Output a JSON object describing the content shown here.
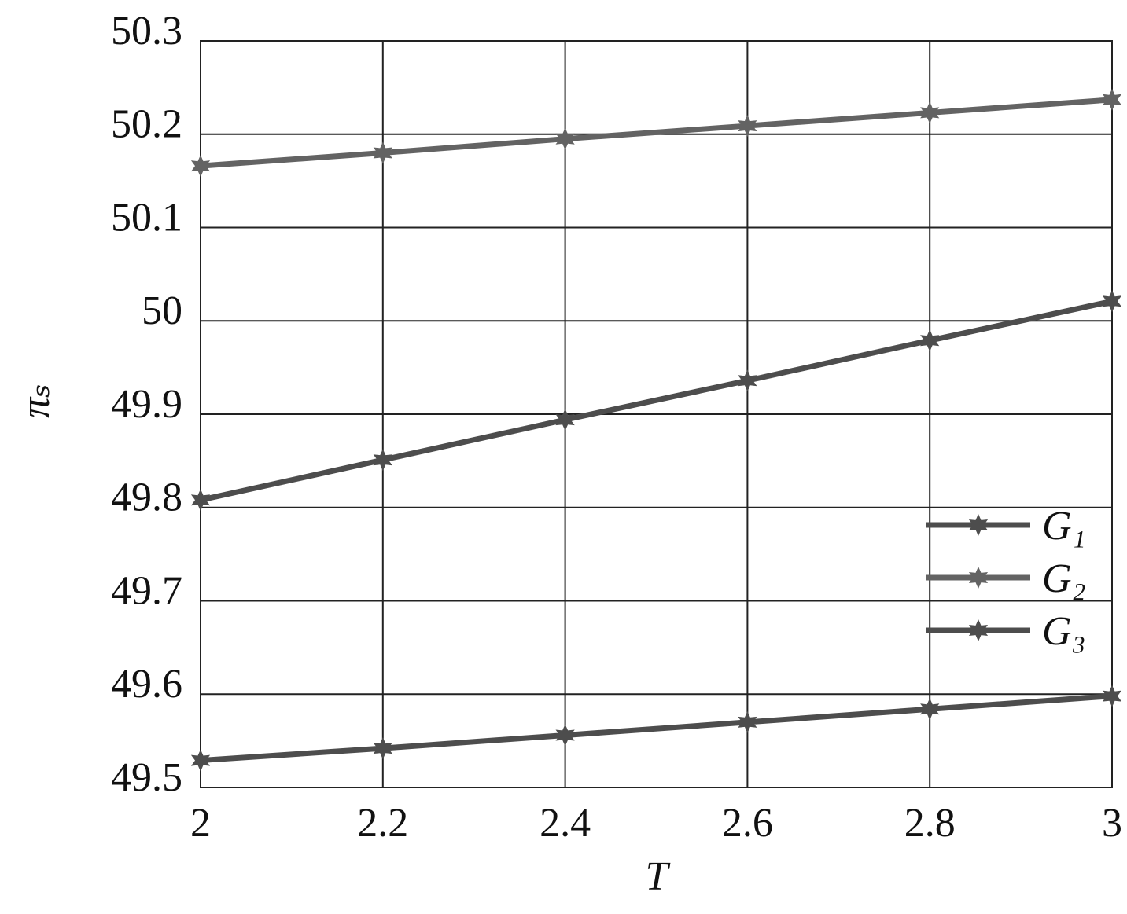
{
  "chart_data": {
    "type": "line",
    "x_label": "T",
    "y_label": "πₛ",
    "x": [
      2,
      2.2,
      2.4,
      2.6,
      2.8,
      3
    ],
    "series": [
      {
        "name": "G₁",
        "color": "#4d4d4d",
        "values": [
          49.529,
          49.542,
          49.556,
          49.57,
          49.584,
          49.598
        ]
      },
      {
        "name": "G₂",
        "color": "#636363",
        "values": [
          50.166,
          50.18,
          50.195,
          50.209,
          50.223,
          50.237
        ]
      },
      {
        "name": "G₃",
        "color": "#4d4d4d",
        "values": [
          49.808,
          49.851,
          49.894,
          49.936,
          49.979,
          50.021
        ]
      }
    ],
    "xlim": [
      2,
      3
    ],
    "xticks": [
      2,
      2.2,
      2.4,
      2.6,
      2.8,
      3
    ],
    "ylim": [
      49.5,
      50.3
    ],
    "yticks": [
      49.5,
      49.6,
      49.7,
      49.8,
      49.9,
      50,
      50.1,
      50.2,
      50.3
    ],
    "grid": true,
    "legend": "right"
  }
}
